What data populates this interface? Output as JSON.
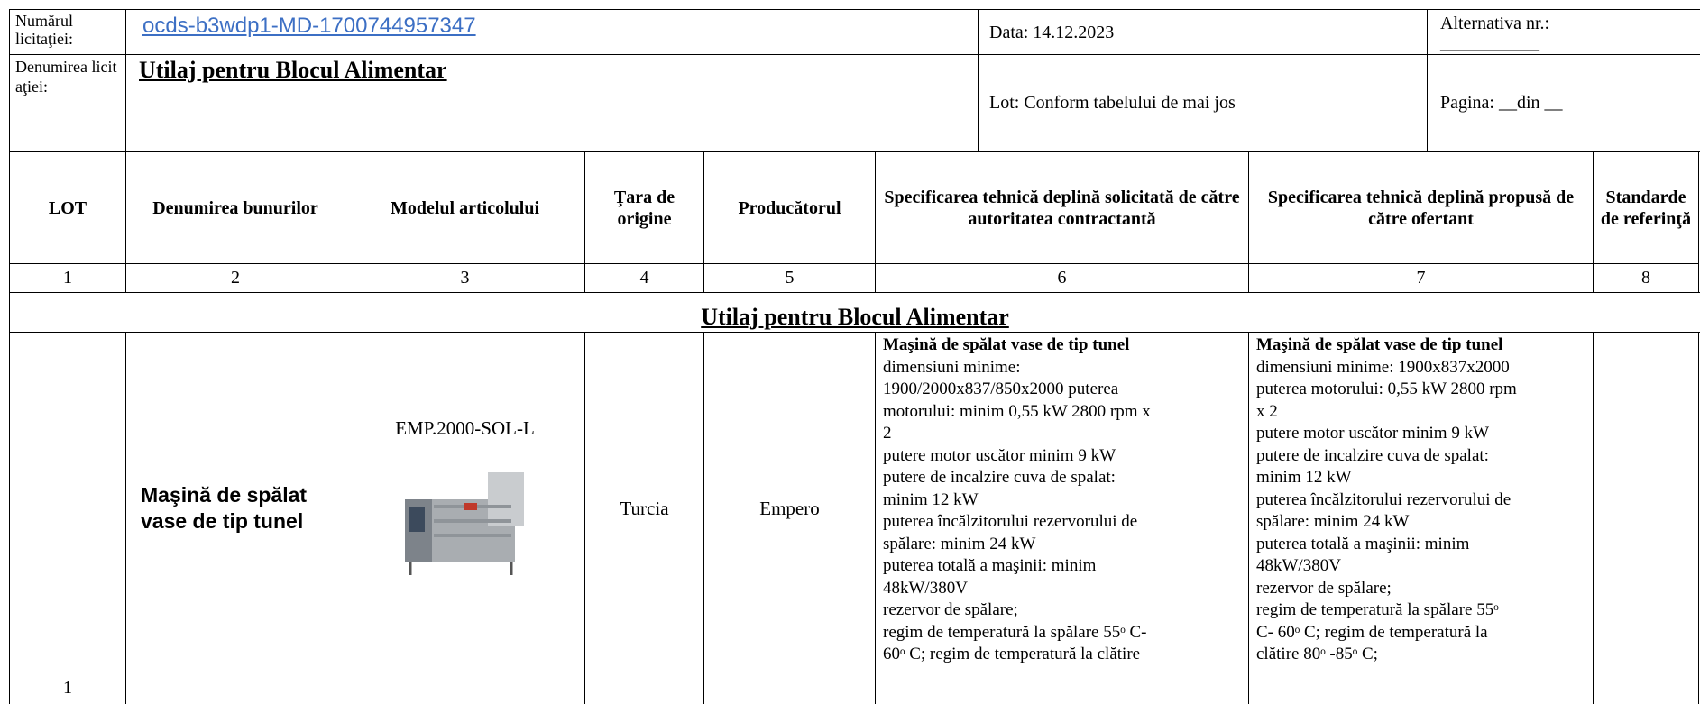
{
  "header": {
    "tender_number_label": "Numărul licitaţiei:",
    "tender_number": "ocds-b3wdp1-MD-1700744957347",
    "date": "Data: 14.12.2023",
    "alternative": "Alternativa nr.:",
    "alternative_blank": "___________",
    "tender_name_label": "Denumirea licitaţiei:",
    "tender_name": "Utilaj pentru Blocul Alimentar",
    "lot": "Lot: Conform tabelului de mai jos",
    "page": "Pagina: __din __"
  },
  "table": {
    "columns": [
      "LOT",
      "Denumirea bunurilor",
      "Modelul articolului",
      "Ţara de origine",
      "Producătorul",
      "Specificarea tehnică deplină solicitată de către autoritatea contractantă",
      "Specificarea tehnică deplină propusă de către ofertant",
      "Standarde de referinţă"
    ],
    "column_numbers": [
      "1",
      "2",
      "3",
      "4",
      "5",
      "6",
      "7",
      "8"
    ],
    "section": "Utilaj pentru Blocul Alimentar",
    "rows": [
      {
        "lot": "1",
        "name": "Maşină de spălat vase de tip tunel",
        "model": "EMP.2000-SOL-L",
        "country": "Turcia",
        "producer": "Empero",
        "required_spec": [
          "Maşină de spălat vase de tip tunel",
          "dimensiuni minime:",
          "1900/2000x837/850x2000 puterea",
          "motorului: minim 0,55 kW 2800 rpm x",
          "2",
          "putere motor uscător minim 9 kW",
          "putere de incalzire cuva de spalat:",
          "minim 12 kW",
          "puterea încălzitorului rezervorului de",
          "spălare: minim 24 kW",
          "puterea totală a maşinii: minim",
          "48kW/380V",
          "rezervor de spălare;",
          "regim de temperatură la spălare 55ᵒ C-",
          "60ᵒ C; regim de temperatură la clătire"
        ],
        "proposed_spec": [
          "Maşină de spălat vase de tip tunel",
          "dimensiuni minime: 1900x837x2000",
          "puterea motorului: 0,55 kW 2800 rpm",
          "x 2",
          "putere motor uscător minim 9 kW",
          "putere de incalzire cuva de spalat:",
          "minim 12 kW",
          "puterea încălzitorului rezervorului de",
          "spălare: minim 24 kW",
          "puterea totală a maşinii: minim",
          "48kW/380V",
          "rezervor de spălare;",
          "regim de temperatură la spălare 55ᵒ",
          "C- 60ᵒ C; regim de temperatură la",
          "clătire 80ᵒ -85ᵒ C;"
        ]
      }
    ]
  }
}
